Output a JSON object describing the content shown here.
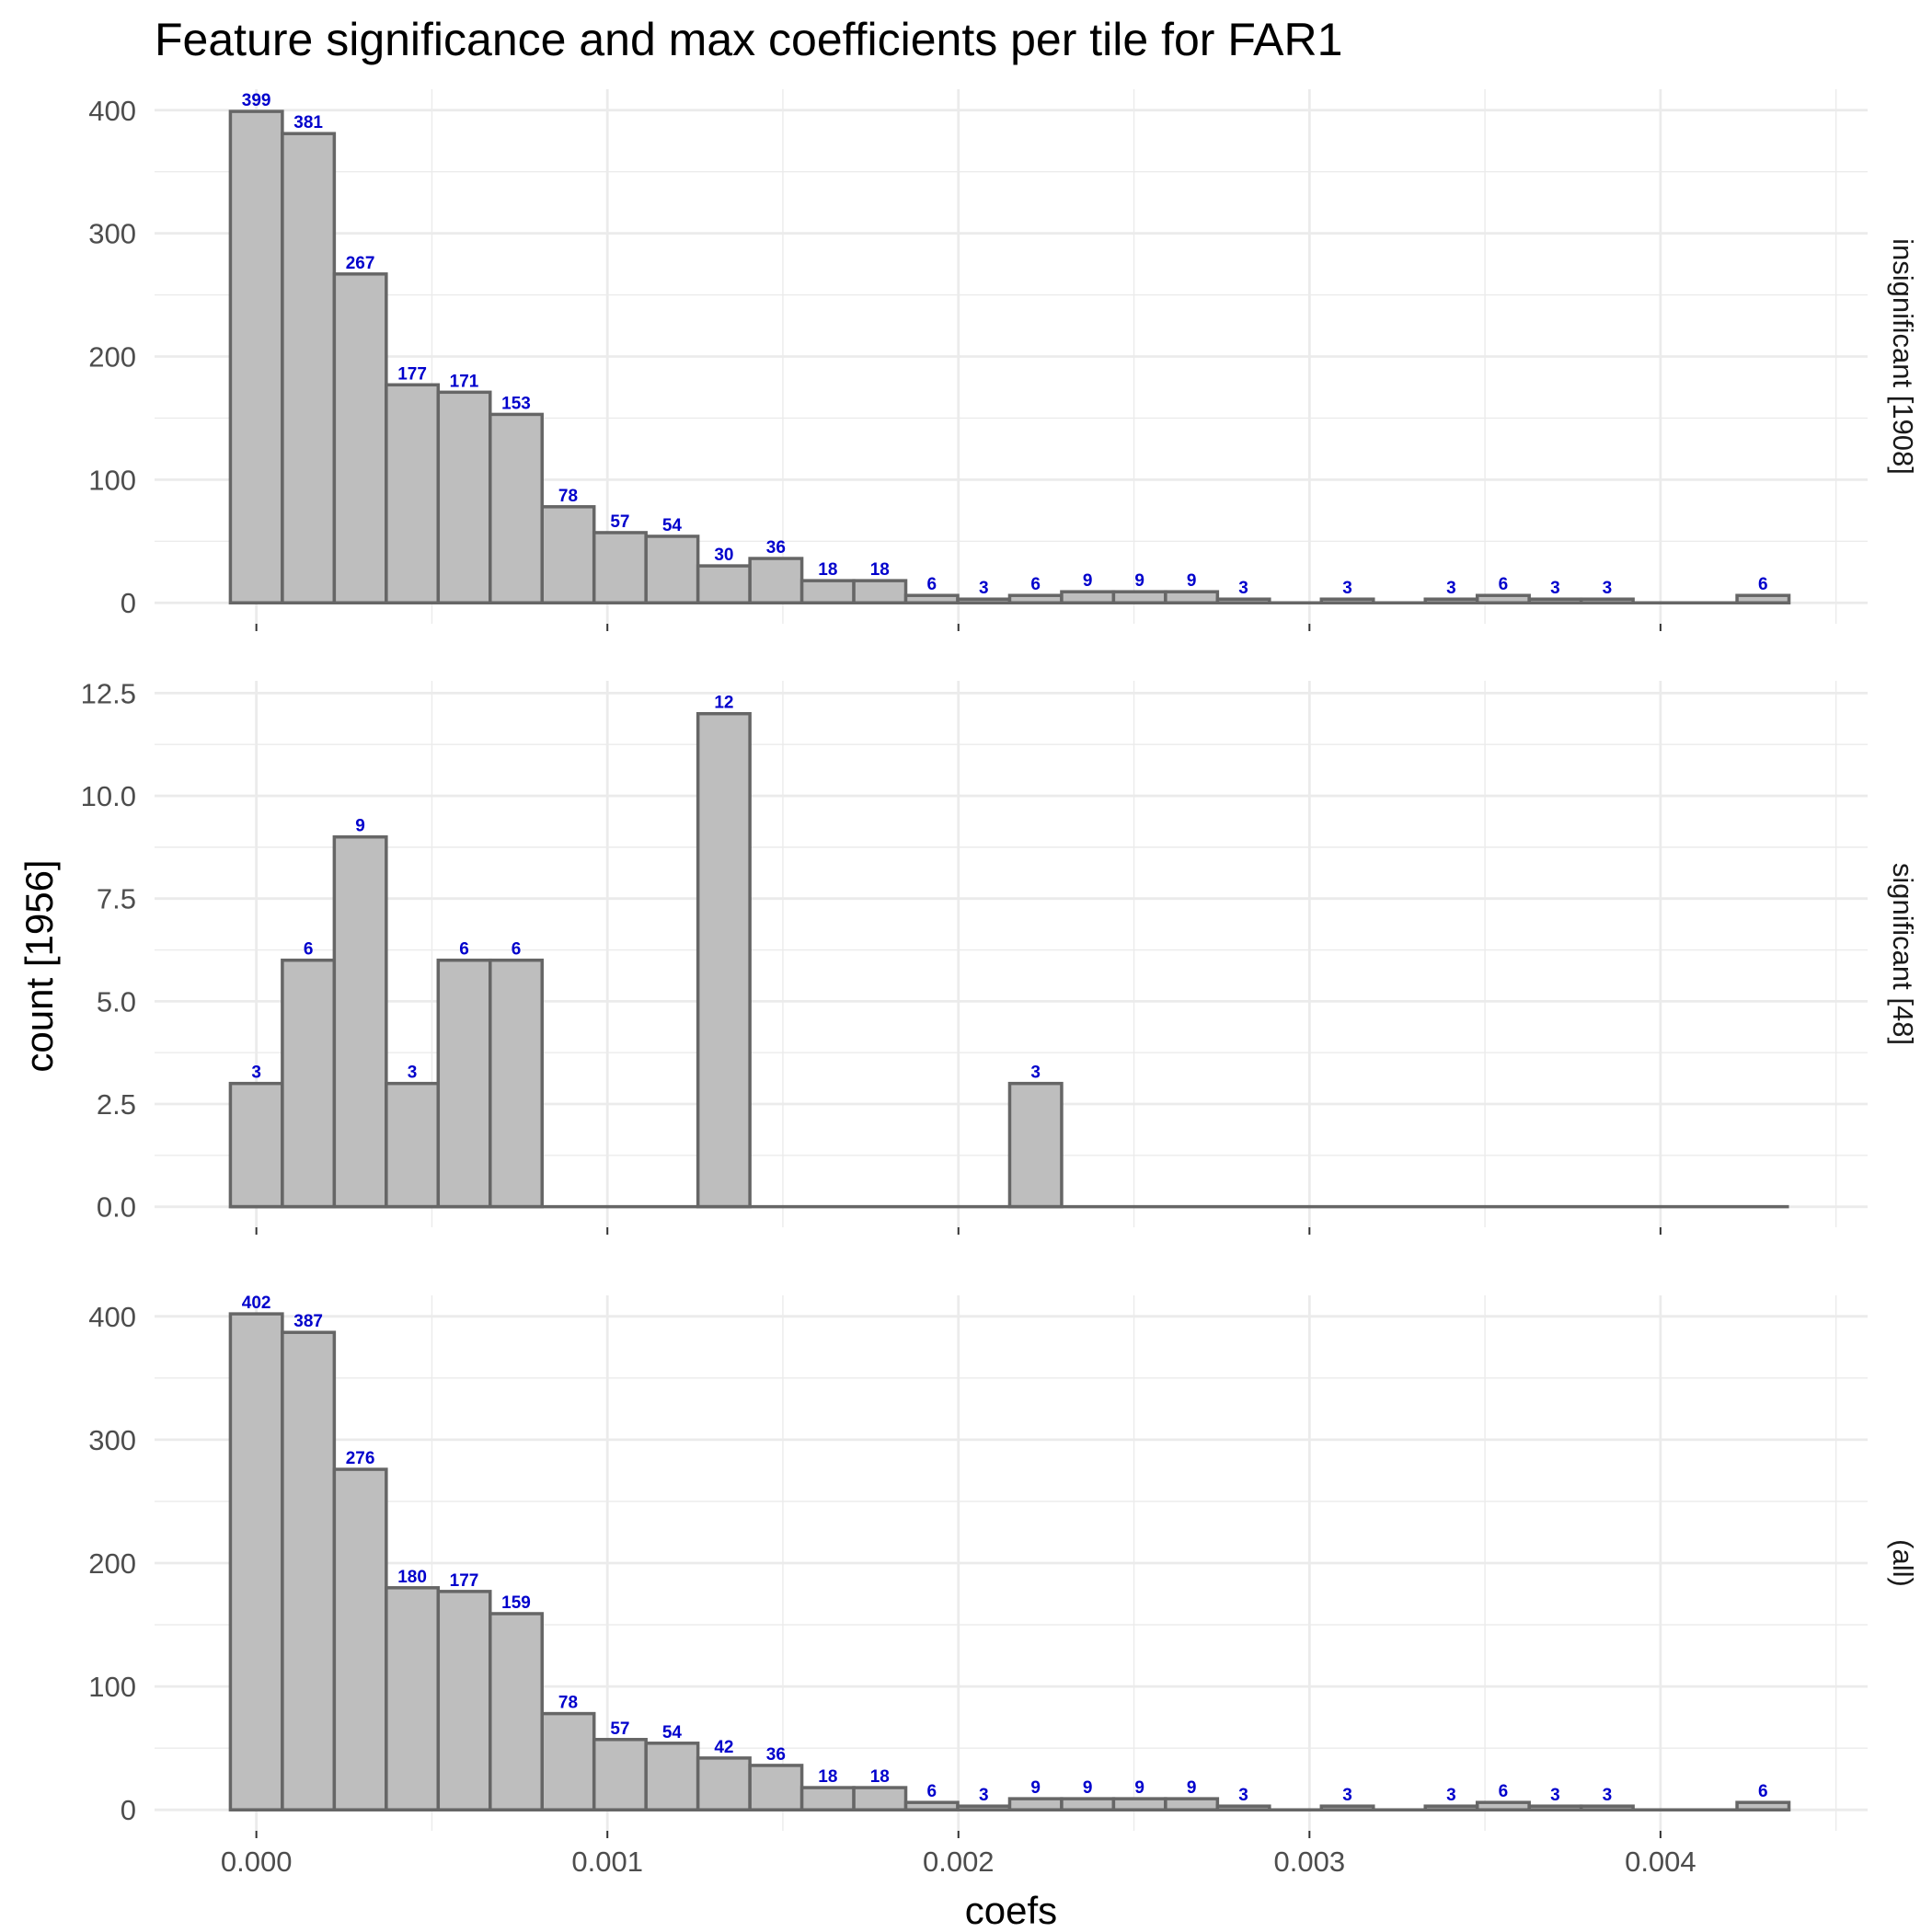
{
  "chart_data": {
    "type": "bar",
    "title": "Feature significance and max coefficients per tile for FAR1",
    "xlabel": "coefs",
    "ylabel": "count [1956]",
    "x_ticks": [
      "0.000",
      "0.001",
      "0.002",
      "0.003",
      "0.004"
    ],
    "x_tick_values": [
      0,
      0.001,
      0.002,
      0.003,
      0.004
    ],
    "xlim": [
      -0.00029,
      0.00459
    ],
    "bin_width": 0.000148,
    "bin_start": -7.4e-05,
    "label_color": "#0000cc",
    "bar_fill": "#bebebe",
    "bar_outline": "#666666",
    "grid": true,
    "panels": [
      {
        "strip": "insignificant [1908]",
        "ylim": [
          -17,
          417
        ],
        "y_ticks": [
          0,
          100,
          200,
          300,
          400
        ],
        "y_tick_labels": [
          "0",
          "100",
          "200",
          "300",
          "400"
        ],
        "values": [
          399,
          381,
          267,
          177,
          171,
          153,
          78,
          57,
          54,
          30,
          36,
          18,
          18,
          6,
          3,
          6,
          9,
          9,
          9,
          3,
          0,
          3,
          0,
          3,
          6,
          3,
          3,
          0,
          0,
          6
        ],
        "labels": [
          "399",
          "381",
          "267",
          "177",
          "171",
          "153",
          "78",
          "57",
          "54",
          "30",
          "36",
          "18",
          "18",
          "6",
          "3",
          "6",
          "9",
          "9",
          "9",
          "3",
          "",
          "3",
          "",
          "3",
          "6",
          "3",
          "3",
          "",
          "",
          "6"
        ]
      },
      {
        "strip": "significant [48]",
        "ylim": [
          -0.5,
          12.8
        ],
        "y_ticks": [
          0,
          2.5,
          5,
          7.5,
          10,
          12.5
        ],
        "y_tick_labels": [
          "0.0",
          "2.5",
          "5.0",
          "7.5",
          "10.0",
          "12.5"
        ],
        "values": [
          3,
          6,
          9,
          3,
          6,
          6,
          0,
          0,
          0,
          12,
          0,
          0,
          0,
          0,
          0,
          3,
          0,
          0,
          0,
          0,
          0,
          0,
          0,
          0,
          0,
          0,
          0,
          0,
          0,
          0
        ],
        "labels": [
          "3",
          "6",
          "9",
          "3",
          "6",
          "6",
          "",
          "",
          "",
          "12",
          "",
          "",
          "",
          "",
          "",
          "3",
          "",
          "",
          "",
          "",
          "",
          "",
          "",
          "",
          "",
          "",
          "",
          "",
          "",
          ""
        ]
      },
      {
        "strip": "(all)",
        "ylim": [
          -17,
          417
        ],
        "y_ticks": [
          0,
          100,
          200,
          300,
          400
        ],
        "y_tick_labels": [
          "0",
          "100",
          "200",
          "300",
          "400"
        ],
        "values": [
          402,
          387,
          276,
          180,
          177,
          159,
          78,
          57,
          54,
          42,
          36,
          18,
          18,
          6,
          3,
          9,
          9,
          9,
          9,
          3,
          0,
          3,
          0,
          3,
          6,
          3,
          3,
          0,
          0,
          6
        ],
        "labels": [
          "402",
          "387",
          "276",
          "180",
          "177",
          "159",
          "78",
          "57",
          "54",
          "42",
          "36",
          "18",
          "18",
          "6",
          "3",
          "9",
          "9",
          "9",
          "9",
          "3",
          "",
          "3",
          "",
          "3",
          "6",
          "3",
          "3",
          "",
          "",
          "6"
        ]
      }
    ]
  }
}
